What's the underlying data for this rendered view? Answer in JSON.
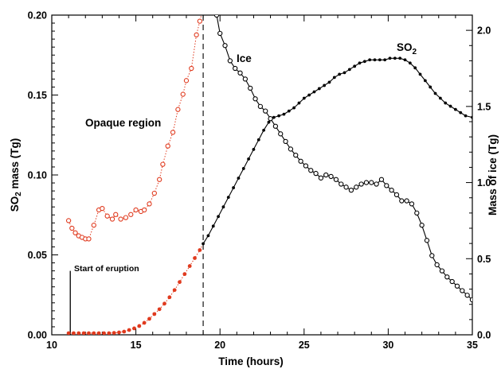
{
  "chart_data": {
    "type": "line",
    "xlabel": "Time (hours)",
    "ylabel_left": "SO₂ mass (Tg)",
    "ylabel_right": "Mass of ice (Tg)",
    "xlim": [
      10,
      35
    ],
    "ylim_left": [
      0,
      0.2
    ],
    "ylim_right": [
      0,
      2.1
    ],
    "x_ticks": [
      "10",
      "15",
      "20",
      "25",
      "30",
      "35"
    ],
    "y_left_ticks": [
      "0.00",
      "0.05",
      "0.10",
      "0.15",
      "0.20"
    ],
    "y_right_ticks": [
      "0.0",
      "0.5",
      "1.0",
      "1.5",
      "2.0"
    ],
    "grid": false,
    "annotations": {
      "opaque_region": "Opaque region",
      "start_of_eruption": "Start of eruption",
      "ice": "Ice",
      "so2": "SO₂"
    },
    "eruption_start_x": 11.1,
    "opaque_boundary_x": 19.0,
    "colors": {
      "opaque": "#e03a1e",
      "main": "#000000"
    },
    "series": [
      {
        "name": "SO₂",
        "axis": "left",
        "style": "small filled dots",
        "x": [
          11.0,
          11.3,
          11.6,
          11.9,
          12.2,
          12.5,
          12.8,
          13.1,
          13.4,
          13.7,
          14.0,
          14.3,
          14.6,
          14.9,
          15.2,
          15.5,
          15.8,
          16.1,
          16.4,
          16.7,
          17.0,
          17.3,
          17.6,
          17.9,
          18.2,
          18.5,
          18.8,
          19.0,
          19.3,
          19.6,
          19.9,
          20.2,
          20.5,
          20.8,
          21.1,
          21.4,
          21.7,
          22.0,
          22.3,
          22.6,
          22.9,
          23.2,
          23.5,
          23.8,
          24.1,
          24.4,
          24.7,
          25.0,
          25.3,
          25.6,
          25.9,
          26.2,
          26.5,
          26.8,
          27.1,
          27.4,
          27.7,
          28.0,
          28.3,
          28.6,
          28.9,
          29.2,
          29.5,
          29.8,
          30.1,
          30.4,
          30.7,
          31.0,
          31.3,
          31.6,
          31.9,
          32.2,
          32.5,
          32.8,
          33.1,
          33.4,
          33.7,
          34.0,
          34.3,
          34.6,
          35.0
        ],
        "y": [
          0.001,
          0.001,
          0.001,
          0.001,
          0.001,
          0.001,
          0.001,
          0.001,
          0.001,
          0.0012,
          0.0015,
          0.002,
          0.003,
          0.004,
          0.0055,
          0.0075,
          0.01,
          0.013,
          0.016,
          0.0195,
          0.0235,
          0.028,
          0.033,
          0.038,
          0.043,
          0.048,
          0.053,
          0.057,
          0.062,
          0.068,
          0.074,
          0.08,
          0.086,
          0.092,
          0.098,
          0.104,
          0.11,
          0.116,
          0.122,
          0.128,
          0.133,
          0.136,
          0.137,
          0.138,
          0.14,
          0.142,
          0.145,
          0.148,
          0.15,
          0.152,
          0.154,
          0.156,
          0.158,
          0.161,
          0.163,
          0.164,
          0.166,
          0.168,
          0.17,
          0.171,
          0.172,
          0.172,
          0.172,
          0.172,
          0.173,
          0.173,
          0.173,
          0.172,
          0.17,
          0.167,
          0.163,
          0.159,
          0.155,
          0.151,
          0.148,
          0.145,
          0.143,
          0.141,
          0.139,
          0.137,
          0.136
        ]
      },
      {
        "name": "Ice",
        "axis": "right",
        "style": "open circles",
        "x": [
          11.0,
          11.2,
          11.4,
          11.6,
          11.8,
          12.0,
          12.2,
          12.5,
          12.8,
          13.0,
          13.3,
          13.6,
          13.8,
          14.1,
          14.4,
          14.7,
          15.0,
          15.3,
          15.5,
          15.8,
          16.1,
          16.4,
          16.6,
          16.9,
          17.2,
          17.5,
          17.8,
          18.0,
          18.3,
          18.6,
          18.8,
          19.0,
          19.2,
          19.5,
          19.8,
          20.0,
          20.3,
          20.6,
          20.9,
          21.2,
          21.5,
          21.8,
          22.1,
          22.4,
          22.7,
          23.0,
          23.3,
          23.6,
          23.9,
          24.2,
          24.5,
          24.8,
          25.1,
          25.4,
          25.7,
          26.0,
          26.3,
          26.6,
          26.9,
          27.2,
          27.5,
          27.8,
          28.1,
          28.4,
          28.7,
          29.0,
          29.3,
          29.6,
          29.9,
          30.2,
          30.5,
          30.8,
          31.1,
          31.4,
          31.7,
          32.0,
          32.3,
          32.6,
          32.9,
          33.2,
          33.5,
          33.8,
          34.1,
          34.4,
          34.7,
          35.0
        ],
        "y": [
          0.75,
          0.7,
          0.67,
          0.65,
          0.64,
          0.63,
          0.63,
          0.72,
          0.82,
          0.83,
          0.78,
          0.76,
          0.79,
          0.76,
          0.77,
          0.79,
          0.82,
          0.81,
          0.82,
          0.86,
          0.93,
          1.02,
          1.12,
          1.24,
          1.33,
          1.48,
          1.58,
          1.67,
          1.75,
          1.97,
          2.06,
          2.15,
          2.2,
          2.2,
          2.1,
          1.98,
          1.9,
          1.8,
          1.75,
          1.72,
          1.68,
          1.62,
          1.55,
          1.5,
          1.47,
          1.42,
          1.37,
          1.32,
          1.27,
          1.22,
          1.18,
          1.14,
          1.11,
          1.08,
          1.06,
          1.03,
          1.05,
          1.04,
          1.02,
          0.99,
          0.97,
          0.95,
          0.97,
          0.99,
          1.0,
          1.0,
          0.99,
          1.02,
          0.98,
          0.95,
          0.92,
          0.88,
          0.88,
          0.86,
          0.8,
          0.72,
          0.62,
          0.52,
          0.46,
          0.42,
          0.38,
          0.35,
          0.32,
          0.29,
          0.26,
          0.23
        ]
      }
    ]
  }
}
